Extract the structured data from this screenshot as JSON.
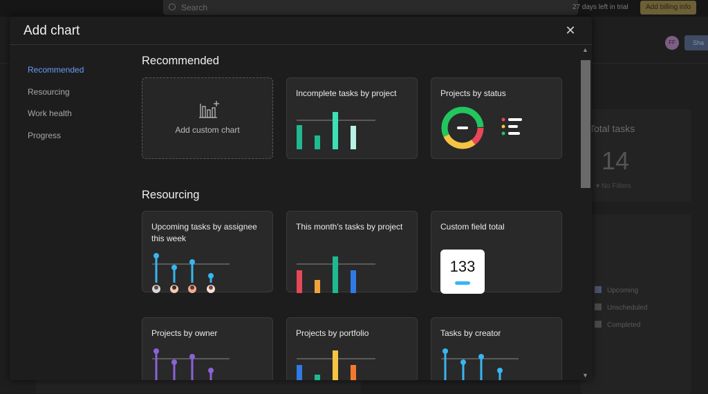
{
  "background": {
    "search_placeholder": "Search",
    "trial_text": "27 days left in trial",
    "billing_button": "Add billing info",
    "avatar_initials": "FF",
    "share_label": "Sha",
    "total_tasks_title": "Total tasks",
    "total_tasks_value": "14",
    "no_filters": "No Filters",
    "legend": [
      {
        "label": "Upcoming",
        "color": "#4a5370"
      },
      {
        "label": "Unscheduled",
        "color": "#4a4a4a"
      },
      {
        "label": "Completed",
        "color": "#4a4a4a"
      }
    ]
  },
  "modal": {
    "title": "Add chart",
    "close_icon": "close-icon",
    "nav": [
      {
        "label": "Recommended",
        "active": true
      },
      {
        "label": "Resourcing",
        "active": false
      },
      {
        "label": "Work health",
        "active": false
      },
      {
        "label": "Progress",
        "active": false
      }
    ],
    "sections": {
      "recommended": {
        "title": "Recommended",
        "cards": [
          {
            "label": "Add custom chart",
            "icon": "add-chart-icon"
          },
          {
            "label": "Incomplete tasks by project"
          },
          {
            "label": "Projects by status"
          }
        ]
      },
      "resourcing": {
        "title": "Resourcing",
        "cards": [
          {
            "label": "Upcoming tasks by assignee this week"
          },
          {
            "label": "This month's tasks by project"
          },
          {
            "label": "Custom field total",
            "value": "133"
          },
          {
            "label": "Projects by owner"
          },
          {
            "label": "Projects by portfolio"
          },
          {
            "label": "Tasks by creator"
          }
        ]
      }
    }
  },
  "colors": {
    "accent_blue": "#6a9df7",
    "teal": "#25c9a8",
    "red": "#e8475a",
    "orange": "#f2a33a",
    "yellow": "#f6c443",
    "green": "#22c55e",
    "lollipop_blue": "#38b6f0",
    "purple": "#8b62d9",
    "bar_blue": "#2f7ae5"
  }
}
